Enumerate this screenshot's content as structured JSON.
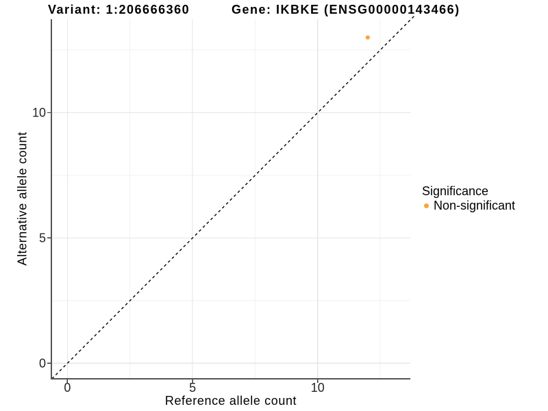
{
  "chart_data": {
    "type": "scatter",
    "title_left": "Variant: 1:206666360",
    "title_right": "Gene: IKBKE (ENSG00000143466)",
    "xlabel": "Reference allele count",
    "ylabel": "Alternative allele count",
    "xlim": [
      -0.64,
      13.7
    ],
    "ylim": [
      -0.62,
      13.73
    ],
    "x_ticks": {
      "major": [
        0,
        5,
        10
      ],
      "minor": [
        2.5,
        7.5,
        12.5
      ]
    },
    "y_ticks": {
      "major": [
        0,
        5,
        10
      ],
      "minor": [
        2.5,
        7.5,
        12.5
      ]
    },
    "series": [
      {
        "name": "Non-significant",
        "color": "#F8A43C",
        "points": [
          {
            "x": 12,
            "y": 13
          }
        ]
      }
    ],
    "reference_line": {
      "type": "identity",
      "style": "dashed",
      "color": "#000000",
      "range": [
        -0.62,
        13.9
      ]
    },
    "legend": {
      "title": "Significance",
      "position": "right",
      "items": [
        {
          "label": "Non-significant",
          "color": "#F8A43C"
        }
      ]
    },
    "grid": true
  },
  "colors": {
    "point": "#F8A43C",
    "grid_major": "#E6E6E6",
    "grid_minor": "#F2F2F2",
    "axis_line": "#545454",
    "tick": "#333333",
    "dashed_line": "#000000",
    "text": "#000000"
  }
}
